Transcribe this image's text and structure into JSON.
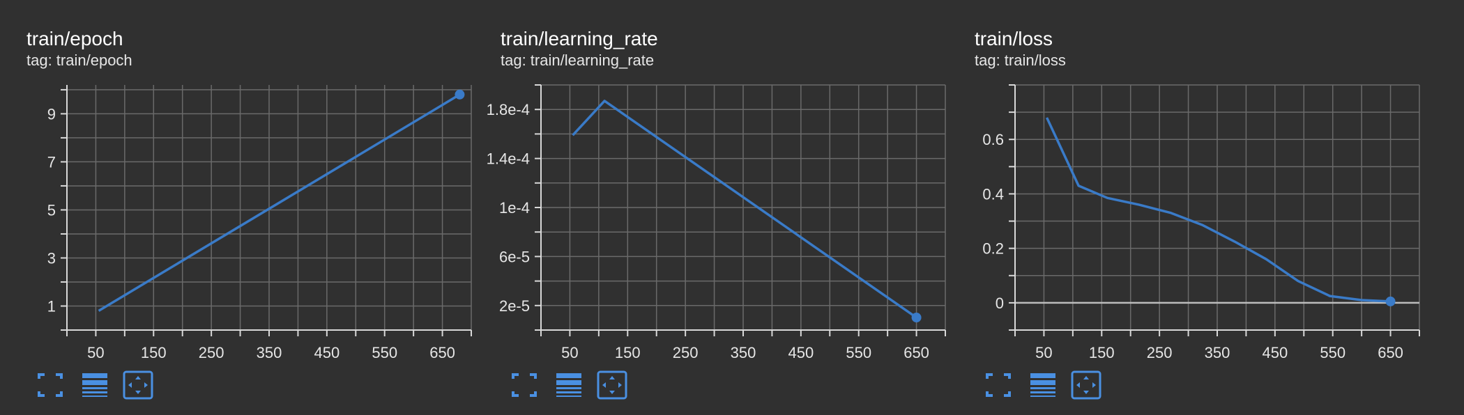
{
  "theme": {
    "background": "#303030",
    "line_color": "#3a7bc8",
    "grid_color": "#6a6a6a",
    "axis_color": "#d9d9d9",
    "text_color": "#e6e6e6",
    "icon_color": "#4a90e2"
  },
  "cards": [
    {
      "title": "train/epoch",
      "tag": "tag: train/epoch",
      "toolbar": {
        "fullscreen_icon": "fullscreen-icon",
        "legend_icon": "legend-icon",
        "fit_icon": "fit-domain-icon"
      }
    },
    {
      "title": "train/learning_rate",
      "tag": "tag: train/learning_rate",
      "toolbar": {
        "fullscreen_icon": "fullscreen-icon",
        "legend_icon": "legend-icon",
        "fit_icon": "fit-domain-icon"
      }
    },
    {
      "title": "train/loss",
      "tag": "tag: train/loss",
      "toolbar": {
        "fullscreen_icon": "fullscreen-icon",
        "legend_icon": "legend-icon",
        "fit_icon": "fit-domain-icon"
      }
    }
  ],
  "chart_data": [
    {
      "type": "line",
      "title": "train/epoch",
      "xlabel": "",
      "ylabel": "",
      "xlim": [
        0,
        700
      ],
      "ylim": [
        0,
        10.2
      ],
      "xticks": [
        50,
        150,
        250,
        350,
        450,
        550,
        650
      ],
      "xtick_labels": [
        "50",
        "150",
        "250",
        "350",
        "450",
        "550",
        "650"
      ],
      "yticks": [
        1,
        3,
        5,
        7,
        9
      ],
      "ytick_labels": [
        "1",
        "3",
        "5",
        "7",
        "9"
      ],
      "grid": true,
      "highlight_last": true,
      "series": [
        {
          "x": [
            55,
            680
          ],
          "y": [
            0.8,
            9.8
          ]
        }
      ]
    },
    {
      "type": "line",
      "title": "train/learning_rate",
      "xlabel": "",
      "ylabel": "",
      "xlim": [
        0,
        700
      ],
      "ylim": [
        0,
        0.0002
      ],
      "xticks": [
        50,
        150,
        250,
        350,
        450,
        550,
        650
      ],
      "xtick_labels": [
        "50",
        "150",
        "250",
        "350",
        "450",
        "550",
        "650"
      ],
      "yticks": [
        2e-05,
        6e-05,
        0.0001,
        0.00014,
        0.00018
      ],
      "ytick_labels": [
        "2e-5",
        "6e-5",
        "1e-4",
        "1.4e-4",
        "1.8e-4"
      ],
      "grid": true,
      "highlight_last": true,
      "series": [
        {
          "x": [
            55,
            110,
            650
          ],
          "y": [
            0.000159,
            0.000187,
            1.02e-05
          ]
        }
      ]
    },
    {
      "type": "line",
      "title": "train/loss",
      "xlabel": "",
      "ylabel": "",
      "xlim": [
        0,
        700
      ],
      "ylim": [
        -0.1,
        0.8
      ],
      "xticks": [
        50,
        150,
        250,
        350,
        450,
        550,
        650
      ],
      "xtick_labels": [
        "50",
        "150",
        "250",
        "350",
        "450",
        "550",
        "650"
      ],
      "yticks": [
        0,
        0.2,
        0.4,
        0.6
      ],
      "ytick_labels": [
        "0",
        "0.2",
        "0.4",
        "0.6"
      ],
      "grid": true,
      "highlight_last": true,
      "zero_line": true,
      "series": [
        {
          "x": [
            55,
            110,
            160,
            215,
            270,
            325,
            380,
            435,
            490,
            545,
            600,
            650
          ],
          "y": [
            0.68,
            0.43,
            0.385,
            0.36,
            0.33,
            0.285,
            0.225,
            0.16,
            0.08,
            0.025,
            0.01,
            0.005
          ]
        }
      ]
    }
  ]
}
